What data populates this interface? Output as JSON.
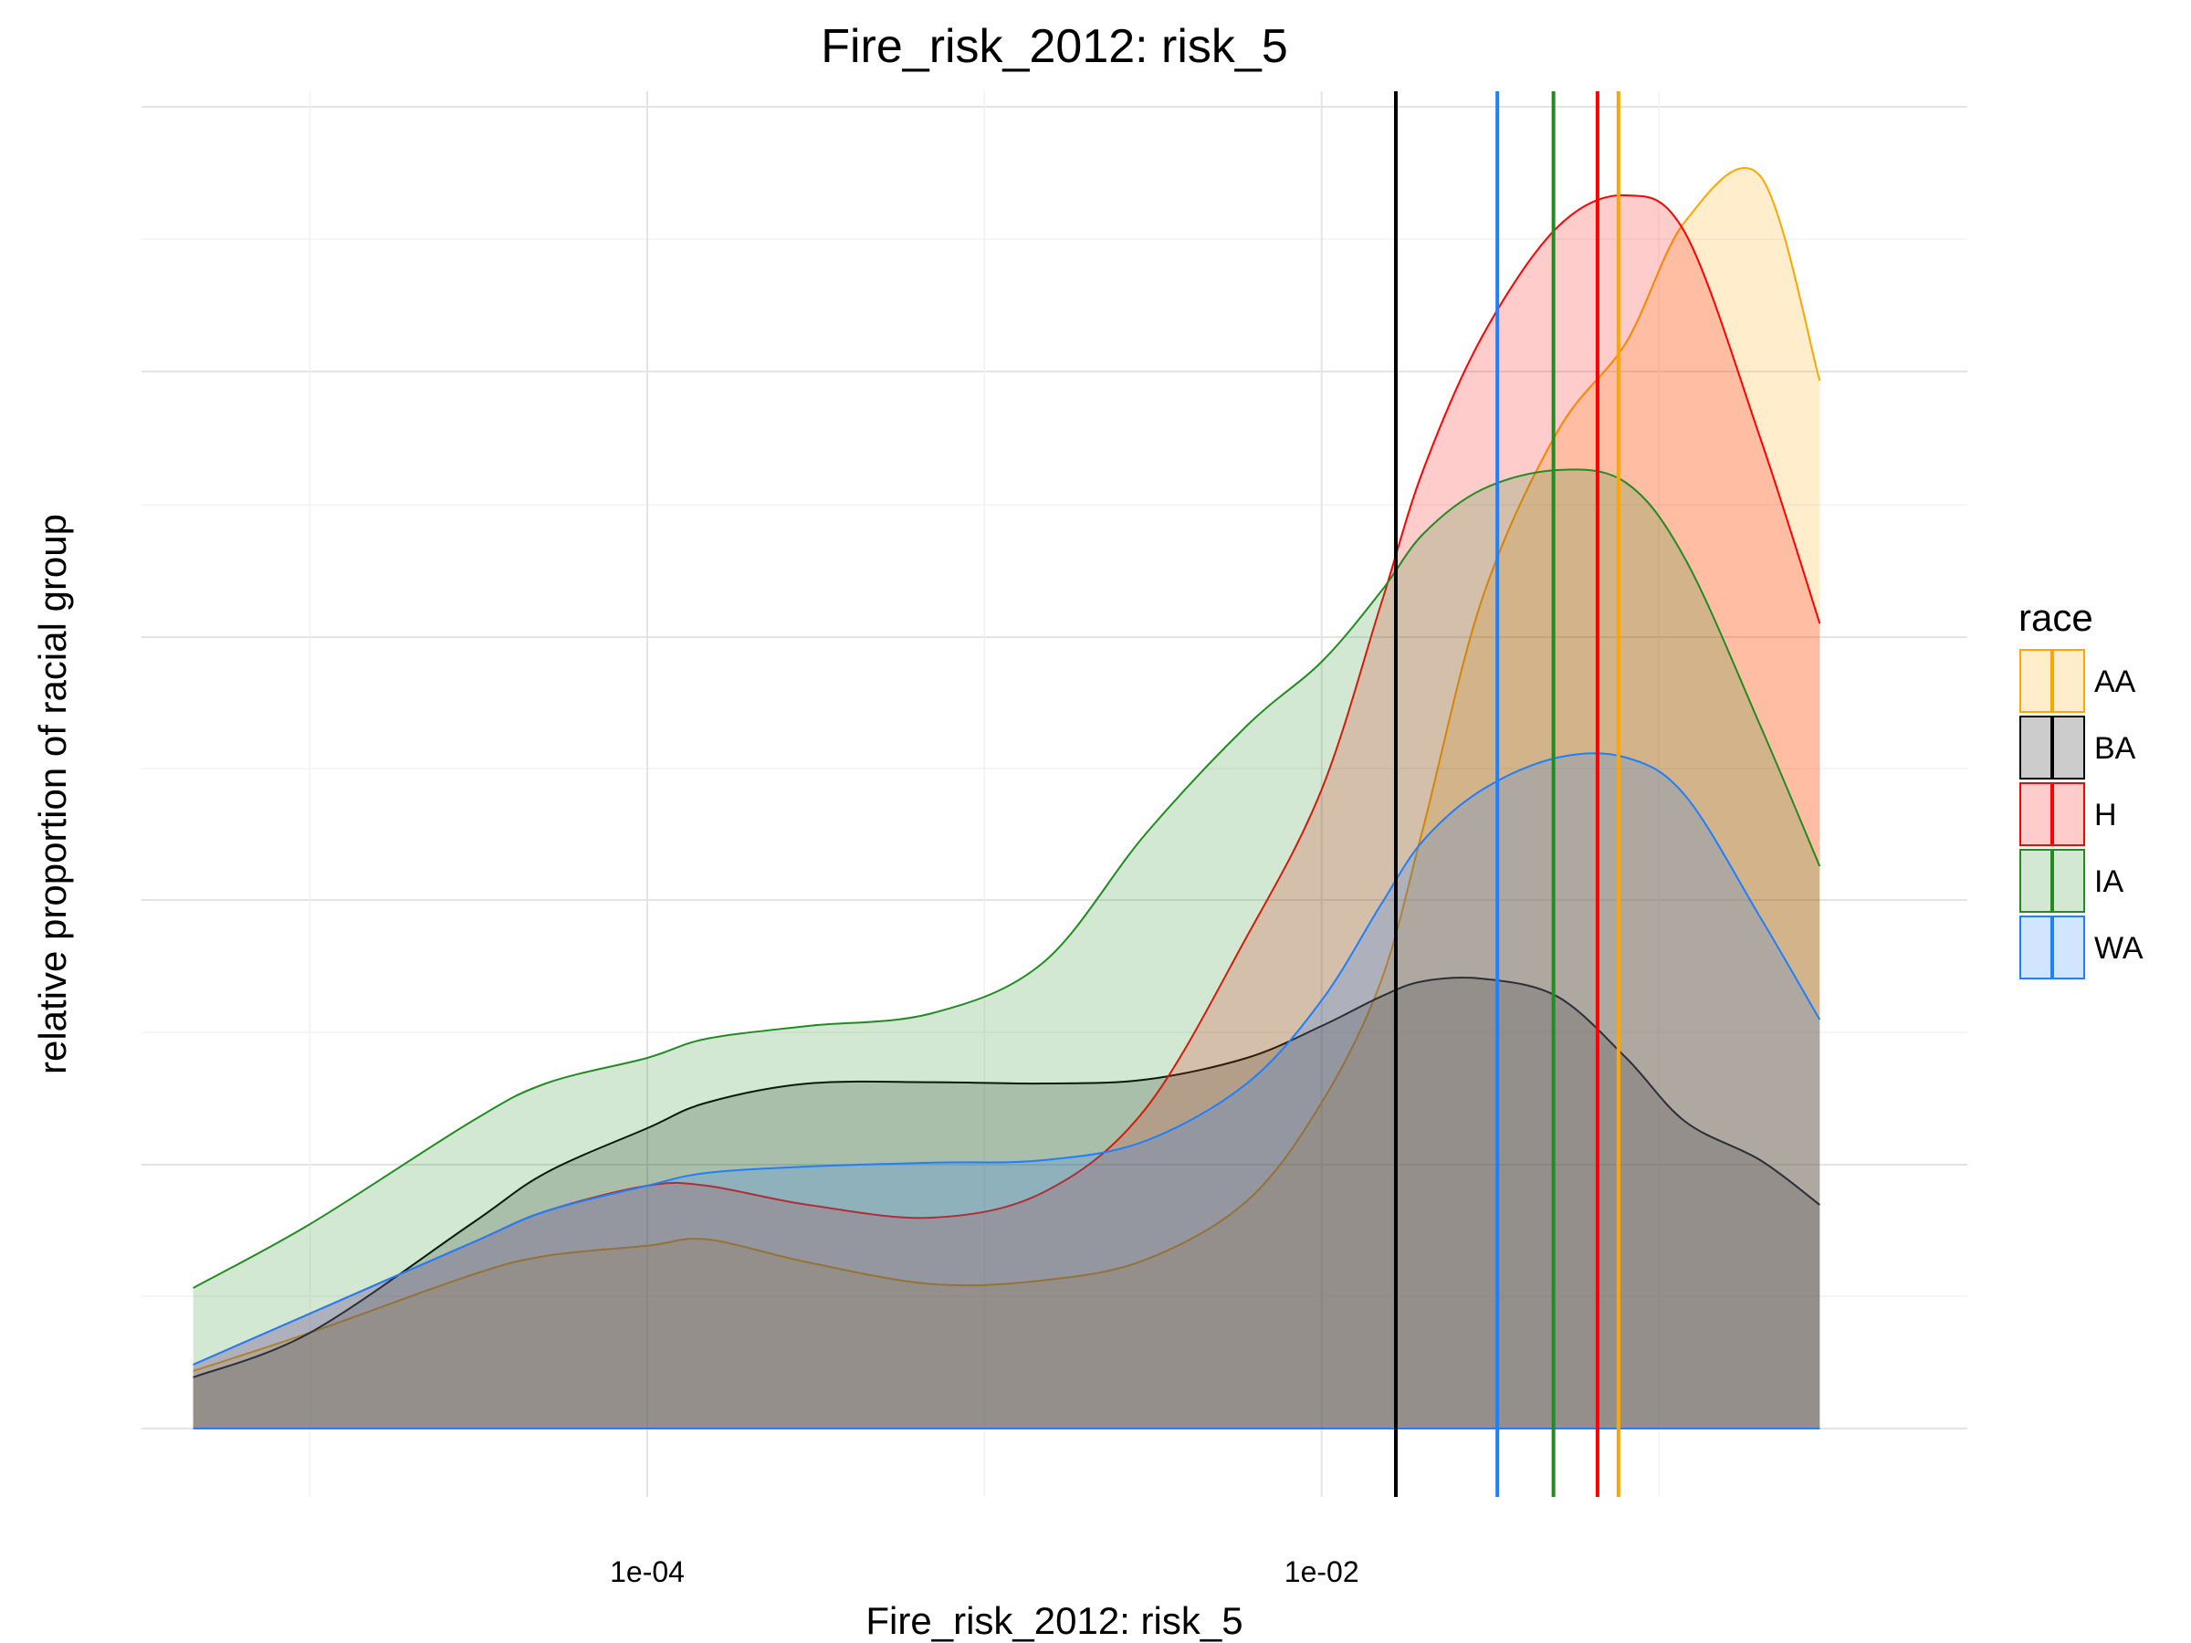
{
  "chart_data": {
    "type": "area",
    "title": "Fire_risk_2012: risk_5",
    "xlabel": "Fire_risk_2012: risk_5",
    "ylabel": "relative proportion of racial group",
    "x_scale": "log10",
    "x_ticks": [
      {
        "value": 0.0001,
        "label": "1e-04"
      },
      {
        "value": 0.01,
        "label": "1e-02"
      }
    ],
    "y_ticks_shown": false,
    "ylim": [
      0,
      100
    ],
    "grid": true,
    "legend": {
      "title": "race",
      "position": "right"
    },
    "x": [
      4.5e-06,
      1e-05,
      3e-05,
      5e-05,
      0.0001,
      0.00015,
      0.0003,
      0.0007,
      0.0015,
      0.003,
      0.006,
      0.01,
      0.015,
      0.02,
      0.03,
      0.05,
      0.08,
      0.12,
      0.2,
      0.3
    ],
    "series": [
      {
        "name": "AA",
        "color": "#FFA500",
        "values": [
          4.5,
          7.5,
          12.0,
          13.5,
          14.3,
          14.8,
          13.0,
          11.3,
          11.6,
          13.2,
          17.8,
          25.5,
          35.0,
          47.0,
          65.0,
          78.0,
          85.0,
          94.5,
          98.0,
          82.0
        ]
      },
      {
        "name": "BA",
        "color": "#000000",
        "values": [
          4.0,
          7.5,
          16.0,
          20.0,
          23.5,
          25.5,
          27.0,
          27.1,
          27.0,
          27.3,
          29.0,
          31.5,
          33.8,
          35.0,
          35.2,
          33.8,
          29.0,
          24.0,
          21.0,
          17.5
        ]
      },
      {
        "name": "H",
        "color": "#FF0000",
        "values": [
          5.0,
          9.0,
          14.5,
          17.0,
          19.0,
          19.0,
          17.5,
          16.5,
          18.5,
          25.0,
          38.5,
          50.0,
          64.5,
          75.0,
          85.5,
          94.0,
          96.5,
          93.5,
          77.5,
          63.0
        ]
      },
      {
        "name": "IA",
        "color": "#228B22",
        "values": [
          11.0,
          16.0,
          24.0,
          27.0,
          29.0,
          30.5,
          31.5,
          32.5,
          36.5,
          46.5,
          55.0,
          60.0,
          65.5,
          70.0,
          73.5,
          75.0,
          74.0,
          68.0,
          55.0,
          44.0
        ]
      },
      {
        "name": "WA",
        "color": "#1E7FFF",
        "values": [
          5.0,
          9.0,
          14.5,
          17.0,
          19.0,
          20.0,
          20.5,
          20.8,
          21.0,
          22.5,
          27.0,
          33.5,
          41.0,
          46.0,
          50.0,
          52.5,
          52.5,
          49.5,
          40.0,
          32.0
        ]
      }
    ],
    "median_lines": [
      {
        "race": "BA",
        "x": 0.0166,
        "color": "#000000"
      },
      {
        "race": "WA",
        "x": 0.0332,
        "color": "#1E7FFF"
      },
      {
        "race": "IA",
        "x": 0.0487,
        "color": "#228B22"
      },
      {
        "race": "H",
        "x": 0.0658,
        "color": "#FF0000"
      },
      {
        "race": "AA",
        "x": 0.0759,
        "color": "#FFA500"
      }
    ]
  }
}
